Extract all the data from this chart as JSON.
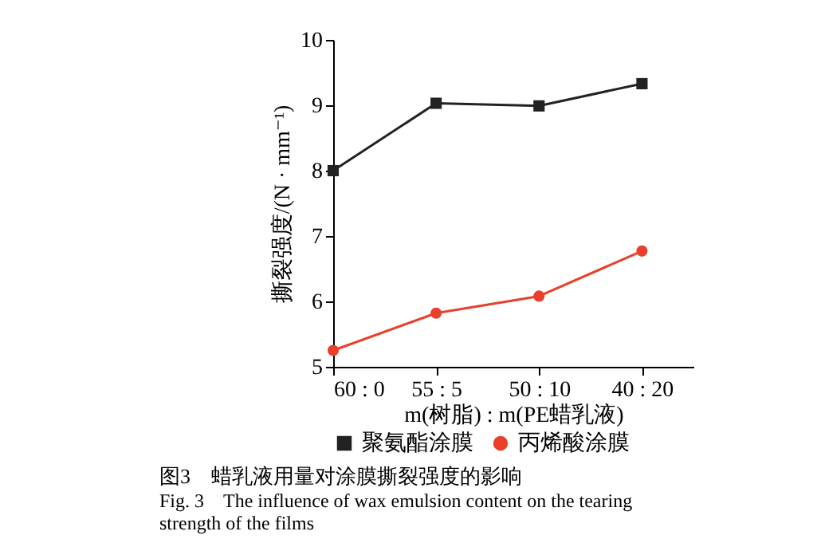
{
  "chart_data": {
    "type": "line",
    "title": "图3　蜡乳液用量对涂膜撕裂强度的影响",
    "subtitle": "Fig. 3　The influence of wax emulsion content on the tearing strength of the films",
    "xlabel": "m(树脂) : m(PE蜡乳液)",
    "ylabel": "撕裂强度/(N · mm⁻¹)",
    "categories": [
      "60 : 0",
      "55 : 5",
      "50 : 10",
      "40 : 20"
    ],
    "series": [
      {
        "name": "聚氨酯涂膜",
        "color": "#222222",
        "marker": "square",
        "values": [
          8.0,
          9.03,
          8.99,
          9.33
        ]
      },
      {
        "name": "丙烯酸涂膜",
        "color": "#e8402a",
        "marker": "circle",
        "values": [
          5.25,
          5.82,
          6.08,
          6.77
        ]
      }
    ],
    "ylim": [
      5,
      10
    ],
    "yticks": [
      5,
      6,
      7,
      8,
      9,
      10
    ],
    "legend": "bottom",
    "grid": false
  }
}
